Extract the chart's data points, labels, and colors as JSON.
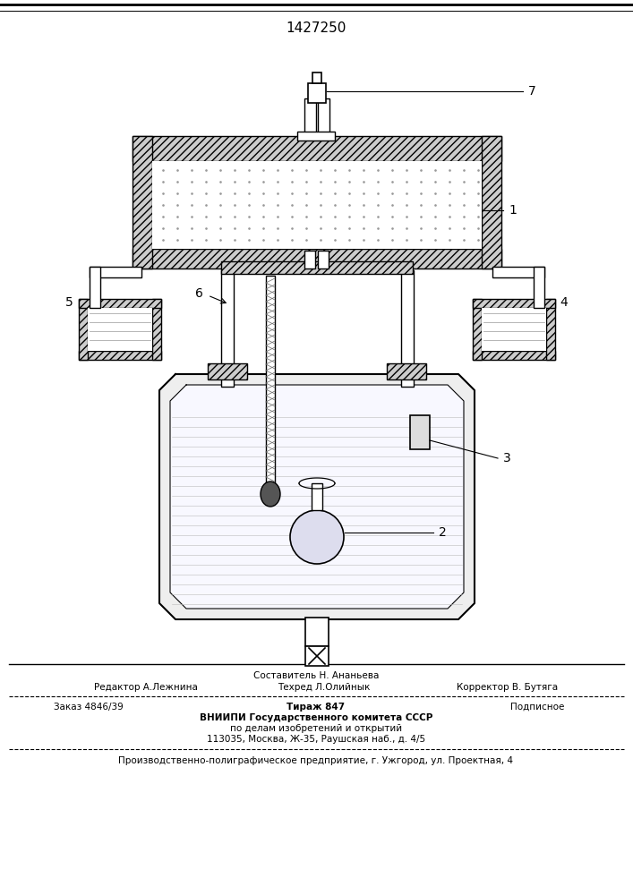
{
  "patent_number": "1427250",
  "footer_line1": "Составитель Н. Ананьева",
  "footer_line2_left": "Редактор А.Лежнина",
  "footer_line2_mid": "Техред Л.Олийнык",
  "footer_line2_right": "Корректор В. Бутяга",
  "footer_line3_left": "Заказ 4846/39",
  "footer_line3_mid": "Тираж 847",
  "footer_line3_right": "Подписное",
  "footer_line4": "ВНИИПИ Государственного комитета СССР",
  "footer_line5": "по делам изобретений и открытий",
  "footer_line6": "113035, Москва, Ж-35, Раушская наб., д. 4/5",
  "footer_line7": "Производственно-полиграфическое предприятие, г. Ужгород, ул. Проектная, 4",
  "bg_color": "#ffffff",
  "line_color": "#000000",
  "label1": "1",
  "label2": "2",
  "label3": "3",
  "label4": "4",
  "label5": "5",
  "label6": "6",
  "label7": "7"
}
